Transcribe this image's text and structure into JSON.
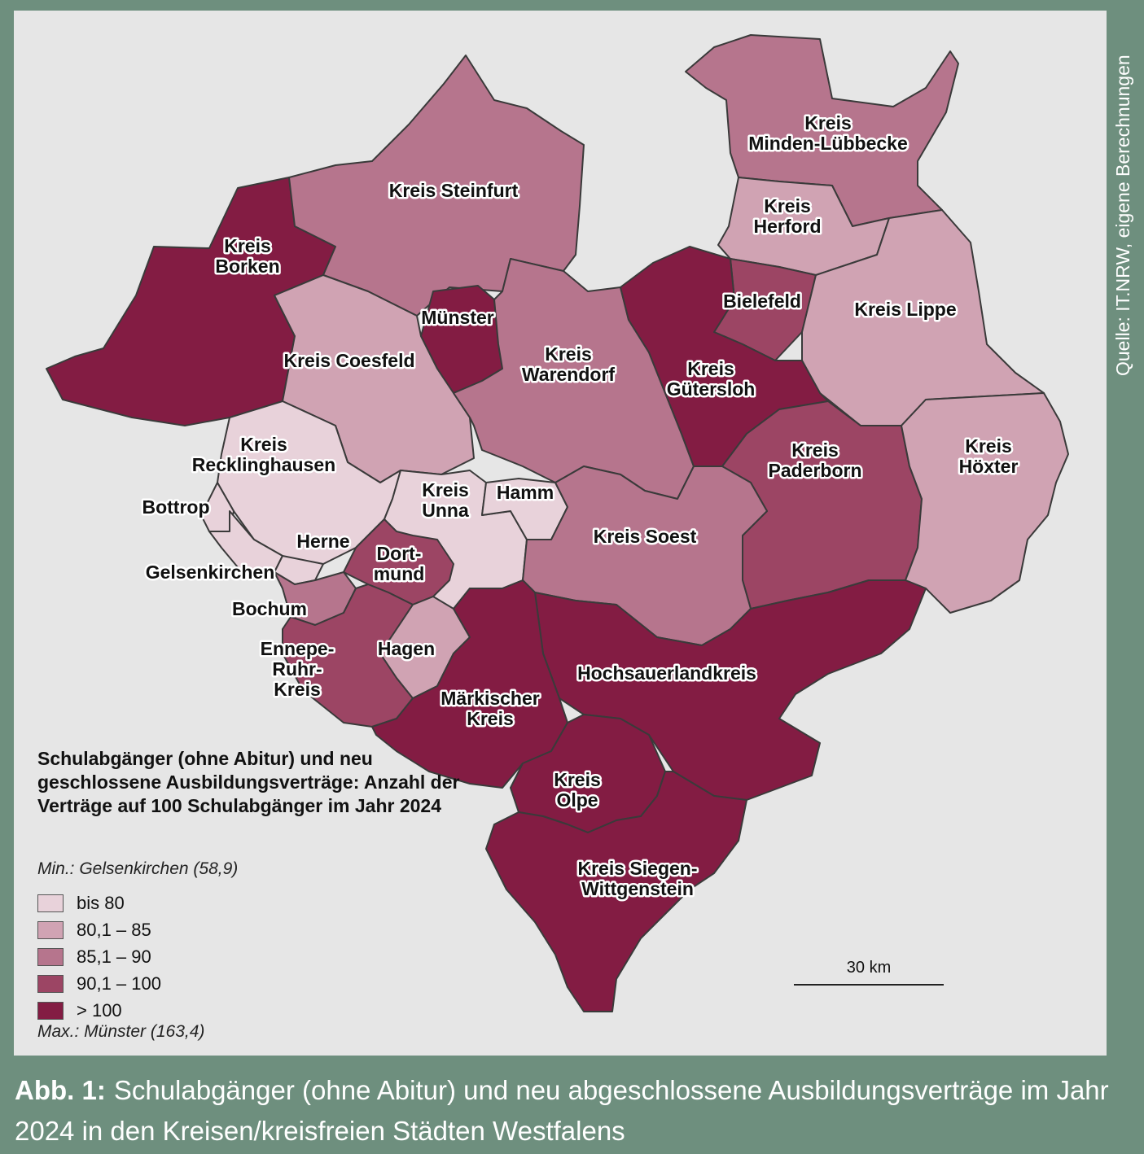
{
  "source_note": "Quelle: IT.NRW, eigene Berechnungen",
  "legend": {
    "title": "Schulabgänger (ohne Abitur) und neu geschlossene Ausbildungsverträge: Anzahl der Verträge auf 100 Schulabgänger im Jahr 2024",
    "min": "Min.: Gelsenkirchen (58,9)",
    "max": "Max.: Münster (163,4)",
    "classes": [
      {
        "label": "bis 80",
        "color": "#e8d2da"
      },
      {
        "label": "80,1 – 85",
        "color": "#d0a3b3"
      },
      {
        "label": "85,1 – 90",
        "color": "#b6758d"
      },
      {
        "label": "90,1 – 100",
        "color": "#9c4564"
      },
      {
        "label": "> 100",
        "color": "#831c43"
      }
    ]
  },
  "scale": {
    "label": "30 km"
  },
  "caption": {
    "head": "Abb. 1:",
    "text": "Schulabgänger (ohne Abitur) und neu abgeschlossene Ausbildungsverträge im Jahr 2024 in den Kreisen/kreisfreien Städten Westfalens"
  },
  "regions": [
    {
      "name": "Kreis Borken",
      "lines": [
        "Kreis",
        "Borken"
      ],
      "class": 4
    },
    {
      "name": "Kreis Steinfurt",
      "lines": [
        "Kreis Steinfurt"
      ],
      "class": 2
    },
    {
      "name": "Kreis Minden-Lübbecke",
      "lines": [
        "Kreis",
        "Minden-Lübbecke"
      ],
      "class": 2
    },
    {
      "name": "Kreis Herford",
      "lines": [
        "Kreis",
        "Herford"
      ],
      "class": 1
    },
    {
      "name": "Bielefeld",
      "lines": [
        "Bielefeld"
      ],
      "class": 3
    },
    {
      "name": "Kreis Lippe",
      "lines": [
        "Kreis Lippe"
      ],
      "class": 1
    },
    {
      "name": "Münster",
      "lines": [
        "Münster"
      ],
      "class": 4
    },
    {
      "name": "Kreis Coesfeld",
      "lines": [
        "Kreis Coesfeld"
      ],
      "class": 1
    },
    {
      "name": "Kreis Warendorf",
      "lines": [
        "Kreis",
        "Warendorf"
      ],
      "class": 2
    },
    {
      "name": "Kreis Gütersloh",
      "lines": [
        "Kreis",
        "Gütersloh"
      ],
      "class": 4
    },
    {
      "name": "Kreis Recklinghausen",
      "lines": [
        "Kreis",
        "Recklinghausen"
      ],
      "class": 0
    },
    {
      "name": "Kreis Unna",
      "lines": [
        "Kreis",
        "Unna"
      ],
      "class": 0
    },
    {
      "name": "Hamm",
      "lines": [
        "Hamm"
      ],
      "class": 0
    },
    {
      "name": "Kreis Paderborn",
      "lines": [
        "Kreis",
        "Paderborn"
      ],
      "class": 3
    },
    {
      "name": "Kreis Höxter",
      "lines": [
        "Kreis",
        "Höxter"
      ],
      "class": 1
    },
    {
      "name": "Bottrop",
      "lines": [
        "Bottrop"
      ],
      "class": 0
    },
    {
      "name": "Gelsenkirchen",
      "lines": [
        "Gelsenkirchen"
      ],
      "class": 0
    },
    {
      "name": "Herne",
      "lines": [
        "Herne"
      ],
      "class": 0
    },
    {
      "name": "Dortmund",
      "lines": [
        "Dort-",
        "mund"
      ],
      "class": 3
    },
    {
      "name": "Bochum",
      "lines": [
        "Bochum"
      ],
      "class": 2
    },
    {
      "name": "Kreis Soest",
      "lines": [
        "Kreis Soest"
      ],
      "class": 2
    },
    {
      "name": "Ennepe-Ruhr-Kreis",
      "lines": [
        "Ennepe-",
        "Ruhr-",
        "Kreis"
      ],
      "class": 3
    },
    {
      "name": "Hagen",
      "lines": [
        "Hagen"
      ],
      "class": 1
    },
    {
      "name": "Hochsauerlandkreis",
      "lines": [
        "Hochsauerlandkreis"
      ],
      "class": 4
    },
    {
      "name": "Märkischer Kreis",
      "lines": [
        "Märkischer",
        "Kreis"
      ],
      "class": 4
    },
    {
      "name": "Kreis Olpe",
      "lines": [
        "Kreis",
        "Olpe"
      ],
      "class": 4
    },
    {
      "name": "Kreis Siegen-Wittgenstein",
      "lines": [
        "Kreis Siegen-",
        "Wittgenstein"
      ],
      "class": 4
    }
  ]
}
